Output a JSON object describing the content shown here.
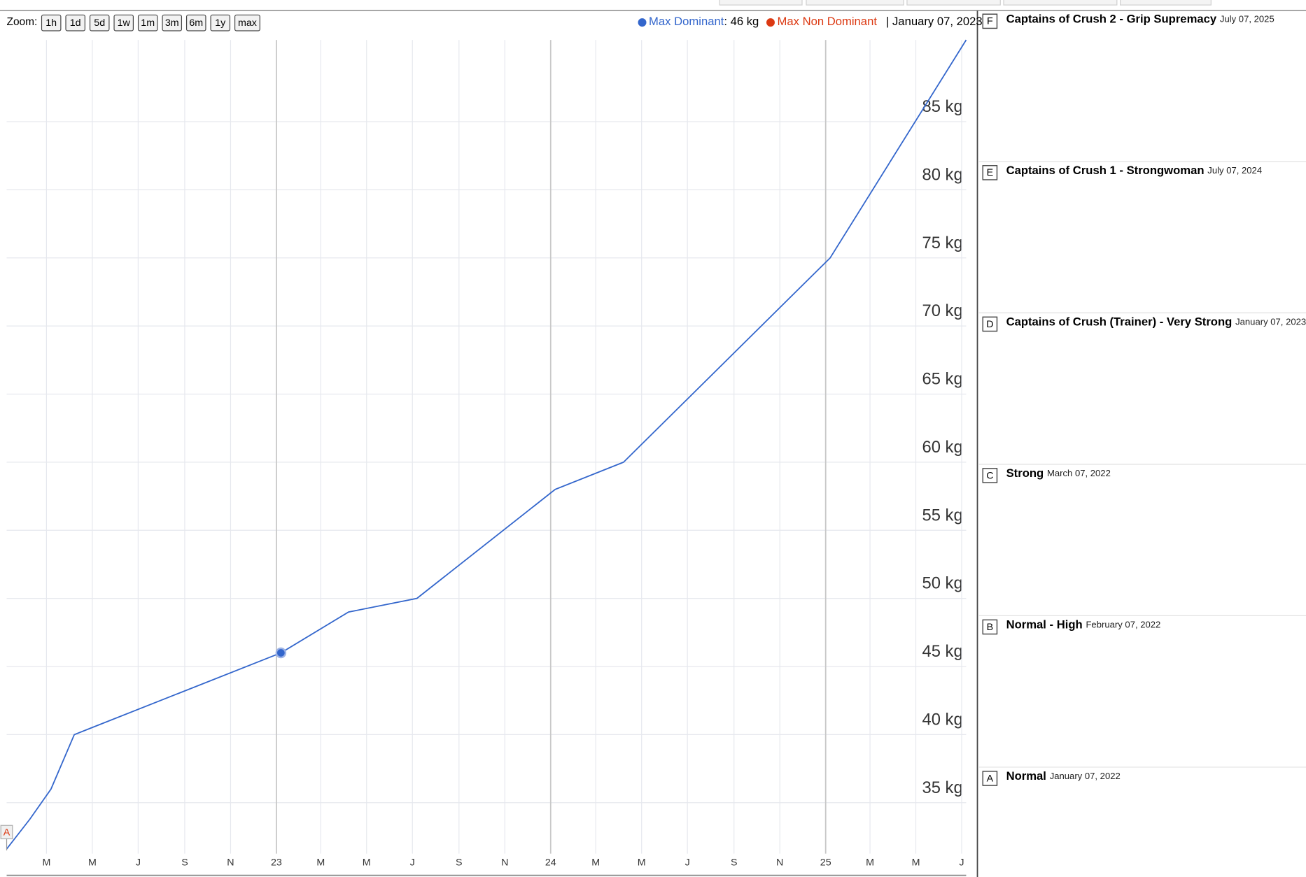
{
  "chart_data": {
    "type": "line",
    "zoom_label": "Zoom:",
    "zoom_buttons": [
      "1h",
      "1d",
      "5d",
      "1w",
      "1m",
      "3m",
      "6m",
      "1y",
      "max"
    ],
    "x": [
      "2022-01-07",
      "2022-02-07",
      "2022-03-07",
      "2022-04-07",
      "2023-01-07",
      "2023-04-07",
      "2023-07-07",
      "2024-01-07",
      "2024-04-07",
      "2025-01-07",
      "2025-07-07"
    ],
    "series": [
      {
        "name": "Max Dominant",
        "color": "#3366cc",
        "values": [
          31.6,
          33.8,
          36,
          40,
          46,
          49,
          50,
          58,
          60,
          75,
          91
        ]
      },
      {
        "name": "Max Non Dominant",
        "color": "#dc3912",
        "values": [
          null,
          null,
          null,
          null,
          null,
          null,
          null,
          null,
          null,
          null,
          null
        ]
      }
    ],
    "hover": {
      "x": "2023-01-07",
      "value": 46,
      "value_label": "46 kg",
      "date_label": "January 07, 2023"
    },
    "xlim": [
      "2022-01-07",
      "2025-07-07"
    ],
    "xticks": [
      {
        "value": "2022-03-01",
        "label": "M"
      },
      {
        "value": "2022-05-01",
        "label": "M"
      },
      {
        "value": "2022-07-01",
        "label": "J"
      },
      {
        "value": "2022-09-01",
        "label": "S"
      },
      {
        "value": "2022-11-01",
        "label": "N"
      },
      {
        "value": "2023-01-01",
        "label": "23"
      },
      {
        "value": "2023-03-01",
        "label": "M"
      },
      {
        "value": "2023-05-01",
        "label": "M"
      },
      {
        "value": "2023-07-01",
        "label": "J"
      },
      {
        "value": "2023-09-01",
        "label": "S"
      },
      {
        "value": "2023-11-01",
        "label": "N"
      },
      {
        "value": "2024-01-01",
        "label": "24"
      },
      {
        "value": "2024-03-01",
        "label": "M"
      },
      {
        "value": "2024-05-01",
        "label": "M"
      },
      {
        "value": "2024-07-01",
        "label": "J"
      },
      {
        "value": "2024-09-01",
        "label": "S"
      },
      {
        "value": "2024-11-01",
        "label": "N"
      },
      {
        "value": "2025-01-01",
        "label": "25"
      },
      {
        "value": "2025-03-01",
        "label": "M"
      },
      {
        "value": "2025-05-01",
        "label": "M"
      },
      {
        "value": "2025-07-01",
        "label": "J"
      }
    ],
    "ylim": [
      31.5,
      91
    ],
    "yticks": [
      {
        "value": 35,
        "label": "35 kg"
      },
      {
        "value": 40,
        "label": "40 kg"
      },
      {
        "value": 45,
        "label": "45 kg"
      },
      {
        "value": 50,
        "label": "50 kg"
      },
      {
        "value": 55,
        "label": "55 kg"
      },
      {
        "value": 60,
        "label": "60 kg"
      },
      {
        "value": 65,
        "label": "65 kg"
      },
      {
        "value": 70,
        "label": "70 kg"
      },
      {
        "value": 75,
        "label": "75 kg"
      },
      {
        "value": 80,
        "label": "80 kg"
      },
      {
        "value": 85,
        "label": "85 kg"
      }
    ],
    "grid": true,
    "annotations": [
      {
        "letter": "F",
        "title": "Captains of Crush 2 - Grip Supremacy",
        "date": "July 07, 2025"
      },
      {
        "letter": "E",
        "title": "Captains of Crush 1 - Strongwoman",
        "date": "July 07, 2024"
      },
      {
        "letter": "D",
        "title": "Captains of Crush (Trainer) - Very Strong",
        "date": "January 07, 2023"
      },
      {
        "letter": "C",
        "title": "Strong",
        "date": "March 07, 2022"
      },
      {
        "letter": "B",
        "title": "Normal - High",
        "date": "February 07, 2022"
      },
      {
        "letter": "A",
        "title": "Normal",
        "date": "January 07, 2022"
      }
    ]
  }
}
